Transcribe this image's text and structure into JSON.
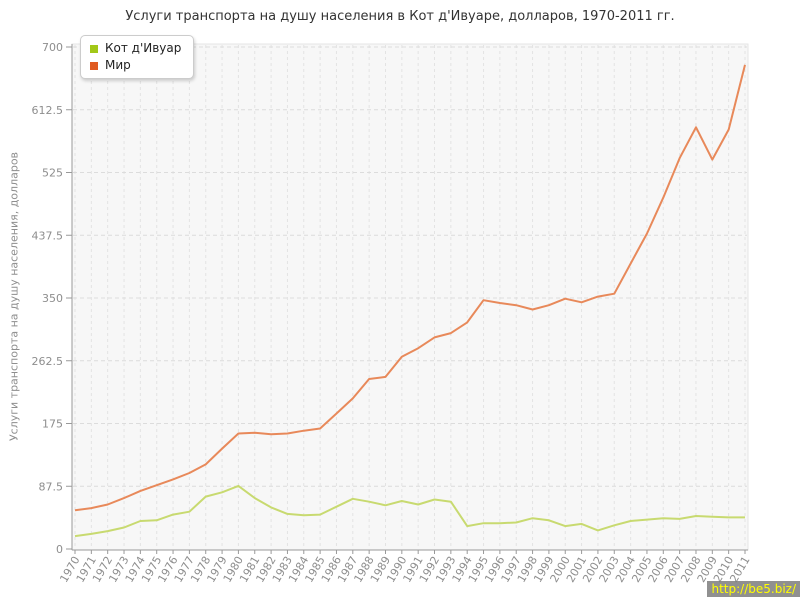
{
  "watermark": "http://be5.biz/",
  "chart_data": {
    "type": "line",
    "title": "Услуги транспорта на душу населения в Кот д'Ивуаре, долларов, 1970-2011 гг.",
    "xlabel": "",
    "ylabel": "Услуги транспорта на душу населения, долларов",
    "ylim": [
      0,
      700
    ],
    "yticks": [
      0,
      87.5,
      175,
      262.5,
      350,
      437.5,
      525,
      612.5,
      700
    ],
    "grid": true,
    "legend_position": "top-left",
    "x": [
      1970,
      1971,
      1972,
      1973,
      1974,
      1975,
      1976,
      1977,
      1978,
      1979,
      1980,
      1981,
      1982,
      1983,
      1984,
      1985,
      1986,
      1987,
      1988,
      1989,
      1990,
      1991,
      1992,
      1993,
      1994,
      1995,
      1996,
      1997,
      1998,
      1999,
      2000,
      2001,
      2002,
      2003,
      2004,
      2005,
      2006,
      2007,
      2008,
      2009,
      2010,
      2011
    ],
    "series": [
      {
        "name": "Кот д'Ивуар",
        "slug": "cote-divoire",
        "color": "#a2c818",
        "line_color": "#c8da70",
        "values": [
          18,
          21,
          25,
          30,
          39,
          40,
          48,
          52,
          73,
          79,
          88,
          71,
          58,
          49,
          47,
          48,
          59,
          70,
          66,
          61,
          67,
          62,
          69,
          66,
          32,
          36,
          36,
          37,
          43,
          40,
          32,
          35,
          26,
          33,
          39,
          41,
          43,
          42,
          46,
          45,
          44,
          44
        ]
      },
      {
        "name": "Мир",
        "slug": "world",
        "color": "#e05a20",
        "line_color": "#e8895a",
        "values": [
          54,
          57,
          62,
          71,
          81,
          89,
          97,
          106,
          118,
          140,
          161,
          162,
          160,
          161,
          165,
          168,
          189,
          210,
          237,
          240,
          268,
          280,
          295,
          301,
          316,
          347,
          343,
          340,
          334,
          340,
          349,
          344,
          352,
          356,
          398,
          440,
          490,
          545,
          588,
          543,
          585,
          675
        ]
      }
    ]
  }
}
